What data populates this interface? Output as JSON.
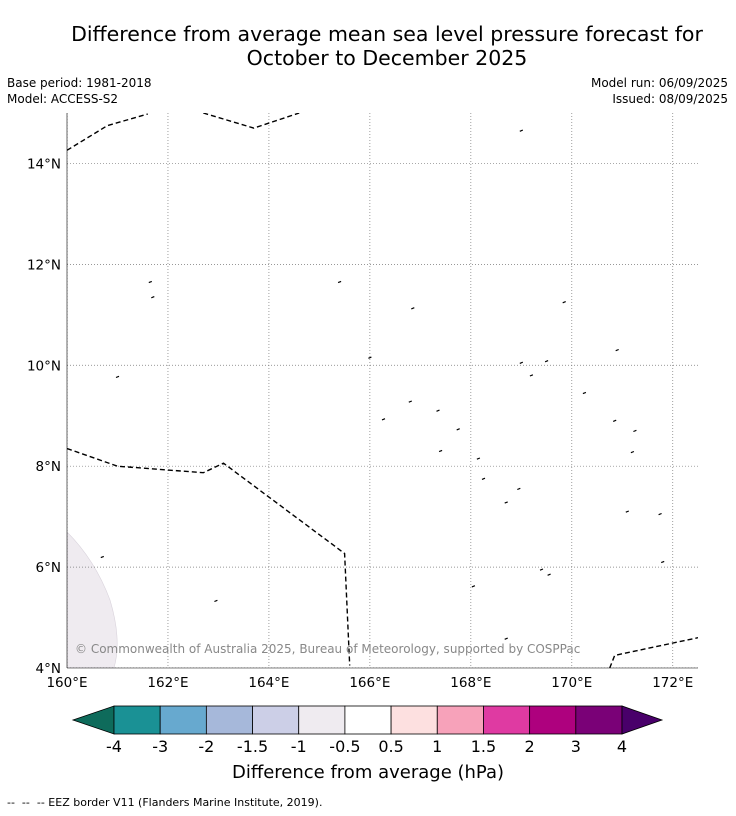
{
  "title": {
    "line1": "Difference from average mean sea level pressure forecast for",
    "line2": "October to December 2025"
  },
  "meta": {
    "base_period": "Base period: 1981-2018",
    "model": "Model: ACCESS-S2",
    "model_run": "Model run: 06/09/2025",
    "issued": "Issued: 08/09/2025"
  },
  "map": {
    "lon_range": [
      160,
      172.5
    ],
    "lat_range": [
      4,
      15
    ],
    "lon_ticks": [
      {
        "value": 160,
        "label": "160°E"
      },
      {
        "value": 162,
        "label": "162°E"
      },
      {
        "value": 164,
        "label": "164°E"
      },
      {
        "value": 166,
        "label": "166°E"
      },
      {
        "value": 168,
        "label": "168°E"
      },
      {
        "value": 170,
        "label": "170°E"
      },
      {
        "value": 172,
        "label": "172°E"
      }
    ],
    "lat_ticks": [
      {
        "value": 4,
        "label": "4°N"
      },
      {
        "value": 6,
        "label": "6°N"
      },
      {
        "value": 8,
        "label": "8°N"
      },
      {
        "value": 10,
        "label": "10°N"
      },
      {
        "value": 12,
        "label": "12°N"
      },
      {
        "value": 14,
        "label": "14°N"
      }
    ],
    "copyright": "© Commonwealth of Australia 2025, Bureau of Meteorology, supported by COSPPac",
    "shaded_region_color": "#efebf0",
    "eez_lines": [
      [
        [
          160,
          14.26
        ],
        [
          160.8,
          14.75
        ],
        [
          161.6,
          14.98
        ]
      ],
      [
        [
          162.7,
          15.0
        ],
        [
          163.7,
          14.7
        ],
        [
          164.6,
          15.0
        ]
      ],
      [
        [
          160,
          8.35
        ],
        [
          161,
          8.0
        ],
        [
          162.7,
          7.87
        ],
        [
          163.1,
          8.06
        ],
        [
          165.5,
          6.27
        ],
        [
          165.6,
          4.05
        ]
      ],
      [
        [
          170.75,
          4.0
        ],
        [
          170.85,
          4.25
        ],
        [
          172.5,
          4.6
        ]
      ]
    ],
    "islands": [
      [
        161.65,
        11.65
      ],
      [
        161.7,
        11.35
      ],
      [
        162.95,
        5.33
      ],
      [
        165.4,
        11.65
      ],
      [
        166.0,
        10.15
      ],
      [
        166.85,
        11.13
      ],
      [
        166.27,
        8.93
      ],
      [
        166.8,
        9.28
      ],
      [
        167.35,
        9.1
      ],
      [
        167.75,
        8.73
      ],
      [
        167.4,
        8.3
      ],
      [
        168.15,
        8.15
      ],
      [
        168.25,
        7.75
      ],
      [
        168.95,
        7.55
      ],
      [
        168.7,
        7.28
      ],
      [
        169.85,
        11.25
      ],
      [
        169.0,
        14.65
      ],
      [
        169.0,
        10.05
      ],
      [
        169.2,
        9.8
      ],
      [
        169.5,
        10.08
      ],
      [
        170.25,
        9.45
      ],
      [
        170.85,
        8.9
      ],
      [
        170.9,
        10.3
      ],
      [
        171.2,
        8.28
      ],
      [
        171.25,
        8.7
      ],
      [
        171.1,
        7.1
      ],
      [
        171.75,
        7.05
      ],
      [
        171.8,
        6.1
      ],
      [
        169.55,
        5.85
      ],
      [
        169.4,
        5.95
      ],
      [
        168.05,
        5.62
      ],
      [
        168.7,
        4.58
      ],
      [
        161.0,
        9.77
      ],
      [
        160.7,
        6.2
      ]
    ]
  },
  "colorbar": {
    "colors": [
      "#0e6b5b",
      "#1a9195",
      "#67a9cf",
      "#a6b8da",
      "#cccfe7",
      "#efebf0",
      "#ffffff",
      "#fde0e0",
      "#f7a2ba",
      "#df3aa2",
      "#ae017e",
      "#7a0177",
      "#49006a"
    ],
    "tick_labels": [
      "-4",
      "-3",
      "-2",
      "-1.5",
      "-1",
      "-0.5",
      "0.5",
      "1",
      "1.5",
      "2",
      "3",
      "4"
    ],
    "label": "Difference from average (hPa)"
  },
  "footnote": "--  --  -- EEZ border V11 (Flanders Marine Institute, 2019)."
}
